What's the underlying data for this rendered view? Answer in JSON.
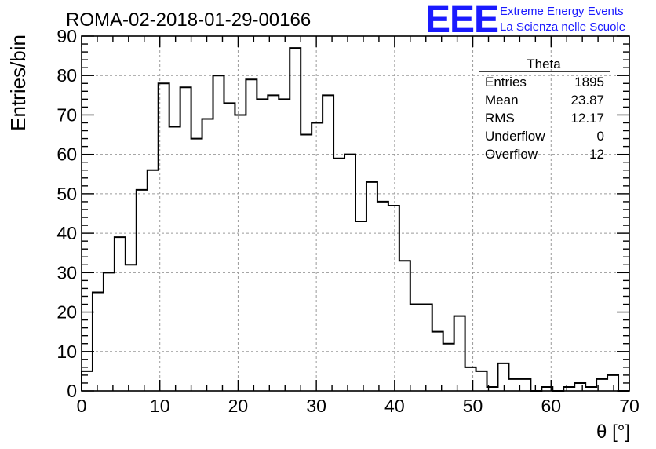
{
  "chart_data": {
    "type": "bar",
    "style": "step-histogram",
    "title": "ROMA-02-2018-01-29-00166",
    "xlabel": "θ [°]",
    "ylabel": "Entries/bin",
    "xlim": [
      0,
      70
    ],
    "ylim": [
      0,
      90
    ],
    "bin_width": 1.4,
    "x_ticks": [
      0,
      10,
      20,
      30,
      40,
      50,
      60,
      70
    ],
    "y_ticks": [
      0,
      10,
      20,
      30,
      40,
      50,
      60,
      70,
      80,
      90
    ],
    "grid": true,
    "values": [
      5,
      25,
      30,
      39,
      32,
      51,
      56,
      78,
      67,
      77,
      64,
      69,
      80,
      73,
      70,
      79,
      74,
      75,
      74,
      87,
      65,
      68,
      75,
      59,
      60,
      43,
      53,
      48,
      47,
      33,
      22,
      22,
      15,
      12,
      19,
      6,
      5,
      1,
      7,
      3,
      3,
      0,
      1,
      0,
      1,
      2,
      1,
      3,
      4,
      0
    ],
    "stats_box": {
      "title": "Theta",
      "rows": [
        {
          "label": "Entries",
          "value": "1895"
        },
        {
          "label": "Mean",
          "value": "23.87"
        },
        {
          "label": "RMS",
          "value": "12.17"
        },
        {
          "label": "Underflow",
          "value": "0"
        },
        {
          "label": "Overflow",
          "value": "12"
        }
      ]
    },
    "line_color": "#000000",
    "grid_color": "#9a9a9a"
  },
  "logo": {
    "text": "EEE",
    "line1": "Extreme Energy Events",
    "line2": "La Scienza nelle Scuole",
    "color": "#1a1aff"
  }
}
